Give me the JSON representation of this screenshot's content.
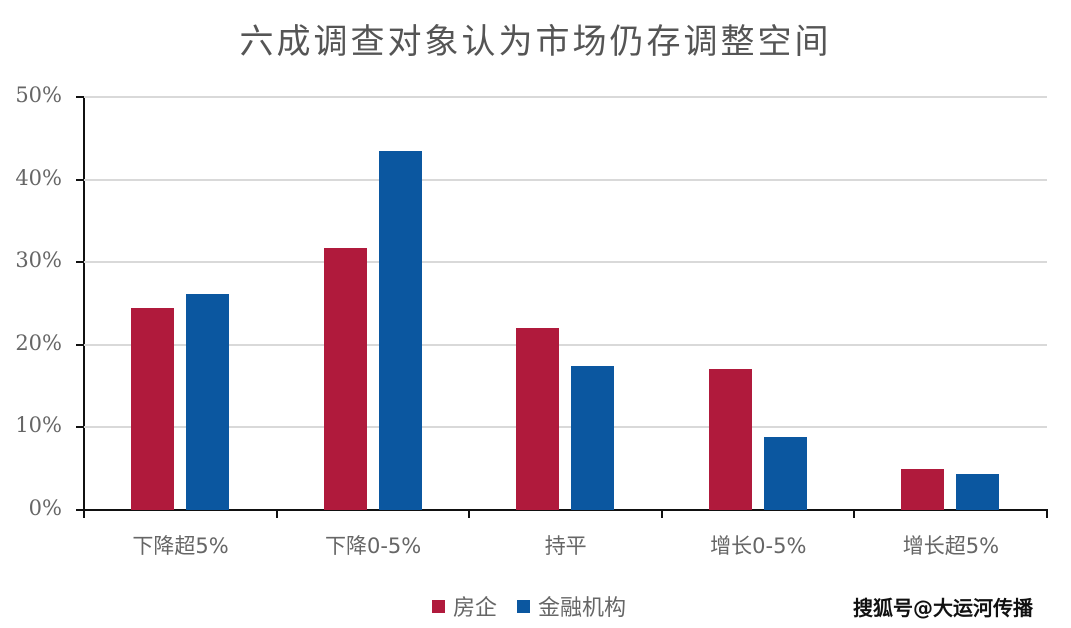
{
  "chart_data": {
    "type": "bar",
    "title": "六成调查对象认为市场仍存调整空间",
    "xlabel": "",
    "ylabel": "",
    "ylim": [
      0,
      50
    ],
    "yticks": [
      "0%",
      "10%",
      "20%",
      "30%",
      "40%",
      "50%"
    ],
    "grid": true,
    "legend_position": "bottom",
    "categories": [
      "下降超5%",
      "下降0-5%",
      "持平",
      "增长0-5%",
      "增长超5%"
    ],
    "series": [
      {
        "name": "房企",
        "color": "#B01A3C",
        "values": [
          24.4,
          31.7,
          22.0,
          17.1,
          5.0
        ]
      },
      {
        "name": "金融机构",
        "color": "#0B57A0",
        "values": [
          26.1,
          43.5,
          17.4,
          8.8,
          4.4
        ]
      }
    ]
  },
  "watermark": "搜狐号@大运河传播"
}
